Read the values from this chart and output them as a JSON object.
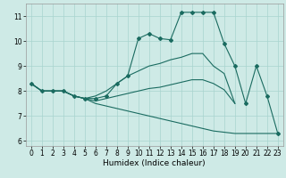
{
  "xlabel": "Humidex (Indice chaleur)",
  "xlim": [
    -0.5,
    23.5
  ],
  "ylim": [
    5.8,
    11.5
  ],
  "yticks": [
    6,
    7,
    8,
    9,
    10,
    11
  ],
  "xticks": [
    0,
    1,
    2,
    3,
    4,
    5,
    6,
    7,
    8,
    9,
    10,
    11,
    12,
    13,
    14,
    15,
    16,
    17,
    18,
    19,
    20,
    21,
    22,
    23
  ],
  "bg_color": "#ceeae6",
  "line_color": "#1a6b60",
  "grid_color": "#a8d4ce",
  "line1_x": [
    0,
    1,
    2,
    3,
    4,
    5,
    6,
    7,
    8,
    9,
    10,
    11,
    12,
    13,
    14,
    15,
    16,
    17,
    18,
    19,
    20,
    21,
    22,
    23
  ],
  "line1_y": [
    8.3,
    8.0,
    8.0,
    8.0,
    7.8,
    7.7,
    7.7,
    7.8,
    8.3,
    8.6,
    10.1,
    10.3,
    10.1,
    10.05,
    11.15,
    11.15,
    11.15,
    11.15,
    9.9,
    9.0,
    7.5,
    9.0,
    7.8,
    6.3
  ],
  "line2_x": [
    0,
    1,
    2,
    3,
    4,
    5,
    6,
    7,
    8,
    9,
    10,
    11,
    12,
    13,
    14,
    15,
    16,
    17,
    18,
    19
  ],
  "line2_y": [
    8.3,
    8.0,
    8.0,
    8.0,
    7.8,
    7.7,
    7.8,
    8.0,
    8.3,
    8.6,
    8.8,
    9.0,
    9.1,
    9.25,
    9.35,
    9.5,
    9.5,
    9.0,
    8.7,
    7.5
  ],
  "line3_x": [
    0,
    1,
    2,
    3,
    4,
    5,
    6,
    7,
    8,
    9,
    10,
    11,
    12,
    13,
    14,
    15,
    16,
    17,
    18,
    19
  ],
  "line3_y": [
    8.3,
    8.0,
    8.0,
    8.0,
    7.8,
    7.7,
    7.6,
    7.7,
    7.8,
    7.9,
    8.0,
    8.1,
    8.15,
    8.25,
    8.35,
    8.45,
    8.45,
    8.3,
    8.05,
    7.5
  ],
  "line4_x": [
    0,
    1,
    2,
    3,
    4,
    5,
    6,
    7,
    8,
    9,
    10,
    11,
    12,
    13,
    14,
    15,
    16,
    17,
    18,
    19,
    20,
    21,
    22,
    23
  ],
  "line4_y": [
    8.3,
    8.0,
    8.0,
    8.0,
    7.8,
    7.7,
    7.5,
    7.4,
    7.3,
    7.2,
    7.1,
    7.0,
    6.9,
    6.8,
    6.7,
    6.6,
    6.5,
    6.4,
    6.35,
    6.3,
    6.3,
    6.3,
    6.3,
    6.3
  ]
}
